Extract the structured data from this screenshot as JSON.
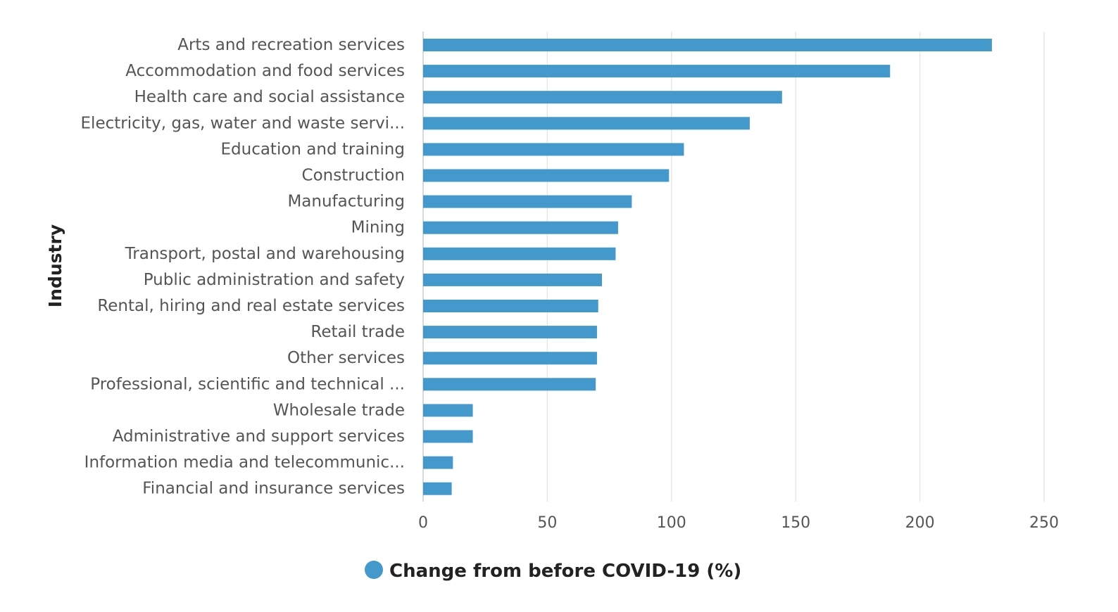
{
  "chart_data": {
    "type": "bar",
    "orientation": "horizontal",
    "title": "",
    "ylabel": "Industry",
    "xlabel": "",
    "xlim": [
      0,
      250
    ],
    "xticks": [
      0,
      50,
      100,
      150,
      200,
      250
    ],
    "grid": true,
    "legend_position": "bottom-center",
    "categories": [
      "Arts and recreation services",
      "Accommodation and food services",
      "Health care and social assistance",
      "Electricity, gas, water and waste servi...",
      "Education and training",
      "Construction",
      "Manufacturing",
      "Mining",
      "Transport, postal and warehousing",
      "Public administration and safety",
      "Rental, hiring and real estate services",
      "Retail trade",
      "Other services",
      "Professional, scientific and technical ...",
      "Wholesale trade",
      "Administrative and support services",
      "Information media and telecommunic...",
      "Financial and insurance services"
    ],
    "series": [
      {
        "name": "Change from before COVID-19 (%)",
        "color": "#4399cc",
        "values": [
          229,
          188,
          144.5,
          131.5,
          105,
          99,
          84,
          78.5,
          77.5,
          72,
          70.5,
          70,
          70,
          69.5,
          20,
          20,
          12,
          11.5
        ]
      }
    ]
  }
}
